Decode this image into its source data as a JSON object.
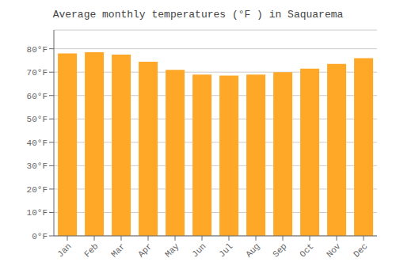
{
  "chart_data": {
    "type": "bar",
    "title": "Average monthly temperatures (°F ) in Saquarema",
    "categories": [
      "Jan",
      "Feb",
      "Mar",
      "Apr",
      "May",
      "Jun",
      "Jul",
      "Aug",
      "Sep",
      "Oct",
      "Nov",
      "Dec"
    ],
    "values": [
      78,
      78.5,
      77.5,
      74.5,
      71,
      69,
      68.5,
      69,
      70,
      71.5,
      73.5,
      76
    ],
    "color": "#FFA726",
    "ylim": [
      0,
      88
    ],
    "yticks": [
      {
        "value": 0,
        "label": "0°F"
      },
      {
        "value": 10,
        "label": "10°F"
      },
      {
        "value": 20,
        "label": "20°F"
      },
      {
        "value": 30,
        "label": "30°F"
      },
      {
        "value": 40,
        "label": "40°F"
      },
      {
        "value": 50,
        "label": "50°F"
      },
      {
        "value": 60,
        "label": "60°F"
      },
      {
        "value": 70,
        "label": "70°F"
      },
      {
        "value": 80,
        "label": "80°F"
      }
    ],
    "grid": true
  }
}
